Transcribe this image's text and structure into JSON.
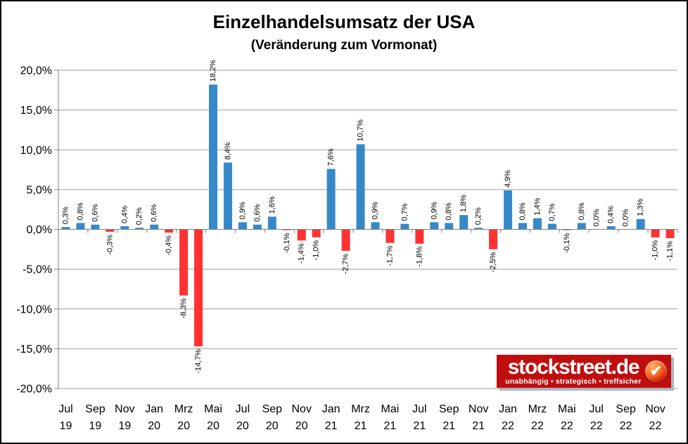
{
  "header": {
    "title": "Einzelhandelsumsatz der USA",
    "subtitle": "(Veränderung zum Vormonat)"
  },
  "chart_data": {
    "type": "bar",
    "title": "Einzelhandelsumsatz der USA",
    "subtitle": "(Veränderung zum Vormonat)",
    "months": [
      "Jul 19",
      "Aug 19",
      "Sep 19",
      "Okt 19",
      "Nov 19",
      "Dez 19",
      "Jan 20",
      "Feb 20",
      "Mrz 20",
      "Apr 20",
      "Mai 20",
      "Jun 20",
      "Jul 20",
      "Aug 20",
      "Sep 20",
      "Okt 20",
      "Nov 20",
      "Dez 20",
      "Jan 21",
      "Feb 21",
      "Mrz 21",
      "Apr 21",
      "Mai 21",
      "Jun 21",
      "Jul 21",
      "Aug 21",
      "Sep 21",
      "Okt 21",
      "Nov 21",
      "Dez 21",
      "Jan 22",
      "Feb 22",
      "Mrz 22",
      "Apr 22",
      "Mai 22",
      "Jun 22",
      "Jul 22",
      "Aug 22",
      "Sep 22",
      "Okt 22",
      "Nov 22",
      "Dez 22"
    ],
    "values": [
      0.3,
      0.8,
      0.6,
      -0.3,
      0.4,
      0.2,
      0.6,
      -0.4,
      -8.3,
      -14.7,
      18.2,
      8.4,
      0.9,
      0.6,
      1.6,
      -0.1,
      -1.4,
      -1.0,
      7.6,
      -2.7,
      10.7,
      0.9,
      -1.7,
      0.7,
      -1.8,
      0.9,
      0.8,
      1.8,
      0.2,
      -2.5,
      4.9,
      0.8,
      1.4,
      0.7,
      -0.1,
      0.8,
      0.0,
      0.4,
      0.0,
      1.3,
      -1.0,
      -1.1
    ],
    "value_labels": [
      "0,3%",
      "0,8%",
      "0,6%",
      "-0,3%",
      "0,4%",
      "0,2%",
      "0,6%",
      "-0,4%",
      "-8,3%",
      "-14,7%",
      "18,2%",
      "8,4%",
      "0,9%",
      "0,6%",
      "1,6%",
      "-0,1%",
      "-1,4%",
      "-1,0%",
      "7,6%",
      "-2,7%",
      "10,7%",
      "0,9%",
      "-1,7%",
      "0,7%",
      "-1,8%",
      "0,9%",
      "0,8%",
      "1,8%",
      "0,2%",
      "-2,5%",
      "4,9%",
      "0,8%",
      "1,4%",
      "0,7%",
      "-0,1%",
      "0,8%",
      "0,0%",
      "0,4%",
      "0,0%",
      "1,3%",
      "-1,0%",
      "-1,1%"
    ],
    "x_tick_labels": [
      [
        "Jul",
        "19"
      ],
      [
        "Sep",
        "19"
      ],
      [
        "Nov",
        "19"
      ],
      [
        "Jan",
        "20"
      ],
      [
        "Mrz",
        "20"
      ],
      [
        "Mai",
        "20"
      ],
      [
        "Jul",
        "20"
      ],
      [
        "Sep",
        "20"
      ],
      [
        "Nov",
        "20"
      ],
      [
        "Jan",
        "21"
      ],
      [
        "Mrz",
        "21"
      ],
      [
        "Mai",
        "21"
      ],
      [
        "Jul",
        "21"
      ],
      [
        "Sep",
        "21"
      ],
      [
        "Nov",
        "21"
      ],
      [
        "Jan",
        "22"
      ],
      [
        "Mrz",
        "22"
      ],
      [
        "Mai",
        "22"
      ],
      [
        "Jul",
        "22"
      ],
      [
        "Sep",
        "22"
      ],
      [
        "Nov",
        "22"
      ]
    ],
    "y_tick_labels": [
      "20,0%",
      "15,0%",
      "10,0%",
      "5,0%",
      "0,0%",
      "-5,0%",
      "-10,0%",
      "-15,0%",
      "-20,0%"
    ],
    "ylim": [
      -20,
      20
    ],
    "grid": true,
    "legend": "none",
    "bar_colors": {
      "positive": "#3689C9",
      "negative": "#FF3232"
    },
    "grid_color": "#9E9E9E",
    "axis_color": "#808080",
    "label_color": "#000000"
  },
  "logo": {
    "text": "stockstreet.de",
    "tagline": "unabhängig  •  strategisch  •  treffsicher",
    "background": "#C00E0E",
    "check_icon": "checkmark-in-circle"
  }
}
